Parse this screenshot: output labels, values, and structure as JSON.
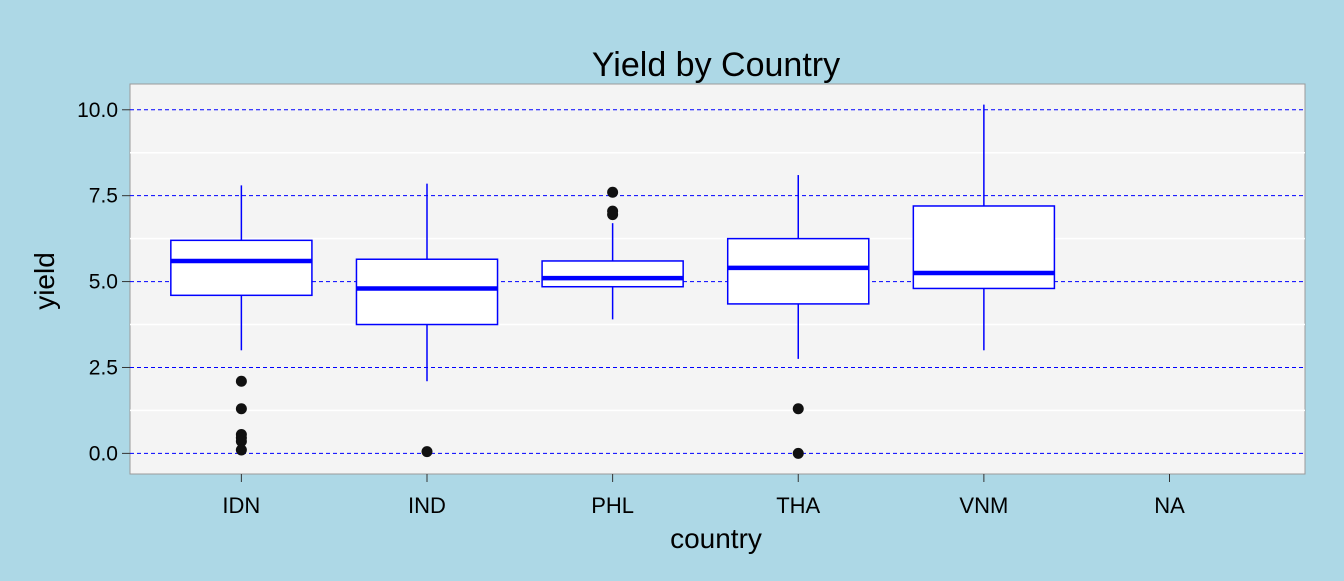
{
  "chart_data": {
    "type": "boxplot",
    "title": "Yield by Country",
    "xlabel": "country",
    "ylabel": "yield",
    "categories": [
      "IDN",
      "IND",
      "PHL",
      "THA",
      "VNM",
      "NA"
    ],
    "ylim": [
      -0.6,
      10.75
    ],
    "yticks": [
      0.0,
      2.5,
      5.0,
      7.5,
      10.0
    ],
    "ytick_labels": [
      "0.0",
      "2.5",
      "5.0",
      "7.5",
      "10.0"
    ],
    "grid": true,
    "boxes": [
      {
        "category": "IDN",
        "whisker_low": 3.0,
        "q1": 4.6,
        "median": 5.6,
        "q3": 6.2,
        "whisker_high": 7.8,
        "outliers": [
          2.1,
          1.3,
          0.55,
          0.45,
          0.35,
          0.1
        ]
      },
      {
        "category": "IND",
        "whisker_low": 2.1,
        "q1": 3.75,
        "median": 4.8,
        "q3": 5.65,
        "whisker_high": 7.85,
        "outliers": [
          0.05
        ]
      },
      {
        "category": "PHL",
        "whisker_low": 3.9,
        "q1": 4.85,
        "median": 5.1,
        "q3": 5.6,
        "whisker_high": 6.7,
        "outliers": [
          6.95,
          7.05,
          7.6
        ]
      },
      {
        "category": "THA",
        "whisker_low": 2.75,
        "q1": 4.35,
        "median": 5.4,
        "q3": 6.25,
        "whisker_high": 8.1,
        "outliers": [
          1.3,
          0.0
        ]
      },
      {
        "category": "VNM",
        "whisker_low": 3.0,
        "q1": 4.8,
        "median": 5.25,
        "q3": 7.2,
        "whisker_high": 10.15,
        "outliers": []
      }
    ],
    "colors": {
      "box": "#0000ff",
      "outlier": "#111111",
      "grid": "#0000ff",
      "panel": "#f4f4f4",
      "background": "#add8e6"
    }
  }
}
